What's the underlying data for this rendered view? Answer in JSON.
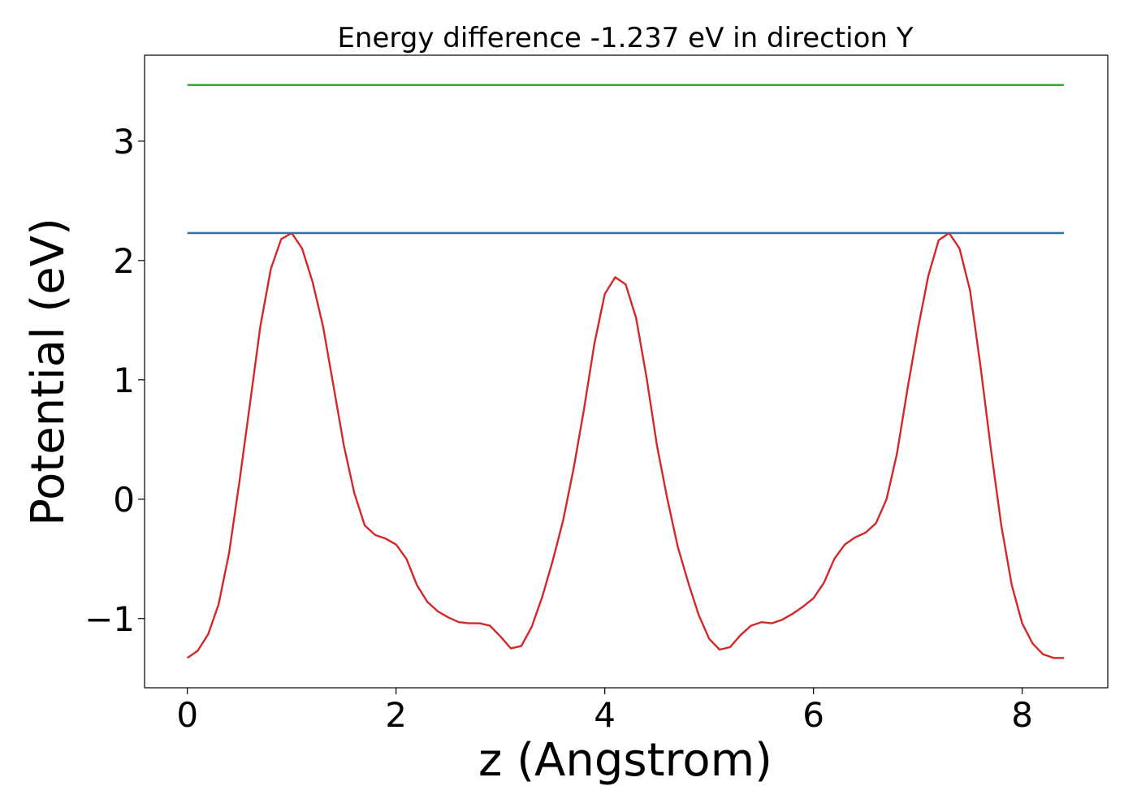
{
  "chart_data": {
    "type": "line",
    "title": "Energy difference -1.237 eV in direction Y",
    "xlabel": "z (Angstrom)",
    "ylabel": "Potential (eV)",
    "xlim": [
      -0.41,
      8.82
    ],
    "ylim": [
      -1.58,
      3.72
    ],
    "xticks": [
      0,
      2,
      4,
      6,
      8
    ],
    "xtick_labels": [
      "0",
      "2",
      "4",
      "6",
      "8"
    ],
    "yticks": [
      -1,
      0,
      1,
      2,
      3
    ],
    "ytick_labels": [
      "−1",
      "0",
      "1",
      "2",
      "3"
    ],
    "grid": false,
    "legend": "none",
    "series": [
      {
        "color": "#d62728",
        "x": [
          0,
          0.1,
          0.2,
          0.3,
          0.4,
          0.5,
          0.6,
          0.7,
          0.8,
          0.9,
          1.0,
          1.1,
          1.2,
          1.3,
          1.4,
          1.5,
          1.6,
          1.7,
          1.8,
          1.9,
          2.0,
          2.1,
          2.2,
          2.3,
          2.4,
          2.5,
          2.6,
          2.7,
          2.8,
          2.9,
          3.0,
          3.1,
          3.2,
          3.3,
          3.4,
          3.5,
          3.6,
          3.7,
          3.8,
          3.9,
          4.0,
          4.1,
          4.2,
          4.3,
          4.4,
          4.5,
          4.6,
          4.7,
          4.8,
          4.9,
          5.0,
          5.1,
          5.2,
          5.3,
          5.4,
          5.5,
          5.6,
          5.7,
          5.8,
          5.9,
          6.0,
          6.1,
          6.2,
          6.3,
          6.4,
          6.5,
          6.6,
          6.7,
          6.8,
          6.9,
          7.0,
          7.1,
          7.2,
          7.3,
          7.4,
          7.5,
          7.6,
          7.7,
          7.8,
          7.9,
          8.0,
          8.1,
          8.2,
          8.3,
          8.4
        ],
        "y": [
          -1.33,
          -1.27,
          -1.13,
          -0.88,
          -0.45,
          0.15,
          0.8,
          1.45,
          1.93,
          2.18,
          2.23,
          2.1,
          1.82,
          1.45,
          0.95,
          0.45,
          0.05,
          -0.22,
          -0.3,
          -0.33,
          -0.38,
          -0.5,
          -0.72,
          -0.86,
          -0.94,
          -0.99,
          -1.03,
          -1.04,
          -1.04,
          -1.06,
          -1.15,
          -1.25,
          -1.23,
          -1.07,
          -0.82,
          -0.52,
          -0.18,
          0.25,
          0.75,
          1.3,
          1.72,
          1.86,
          1.8,
          1.52,
          1.02,
          0.45,
          0.0,
          -0.4,
          -0.7,
          -0.97,
          -1.17,
          -1.26,
          -1.24,
          -1.14,
          -1.06,
          -1.03,
          -1.04,
          -1.01,
          -0.96,
          -0.9,
          -0.83,
          -0.7,
          -0.5,
          -0.38,
          -0.32,
          -0.28,
          -0.2,
          0.0,
          0.38,
          0.92,
          1.42,
          1.87,
          2.17,
          2.23,
          2.1,
          1.75,
          1.12,
          0.42,
          -0.22,
          -0.72,
          -1.04,
          -1.21,
          -1.3,
          -1.33,
          -1.33
        ]
      },
      {
        "color": "#1f77b4",
        "x": [
          0,
          8.4
        ],
        "y": [
          2.23,
          2.23
        ]
      },
      {
        "color": "#2ca02c",
        "x": [
          0,
          8.4
        ],
        "y": [
          3.47,
          3.47
        ]
      }
    ]
  }
}
